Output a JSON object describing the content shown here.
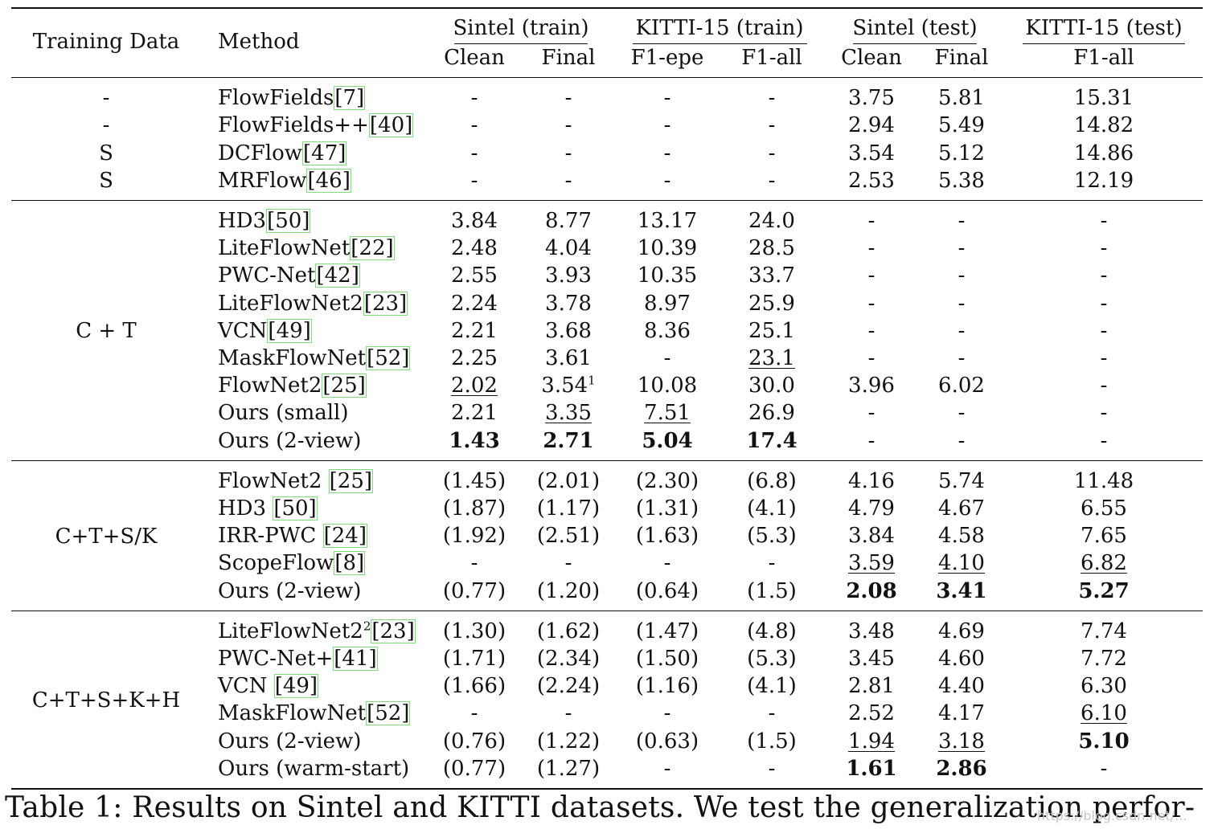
{
  "header": {
    "training_data": "Training Data",
    "method": "Method",
    "groups": [
      "Sintel (train)",
      "KITTI-15 (train)",
      "Sintel (test)",
      "KITTI-15 (test)"
    ],
    "columns": [
      "Clean",
      "Final",
      "F1-epe",
      "F1-all",
      "Clean",
      "Final",
      "F1-all"
    ]
  },
  "sections": [
    {
      "label": "",
      "rows": [
        {
          "td": "-",
          "method": "FlowFields",
          "cite": "[7]",
          "sup": "",
          "cells": [
            [
              "-"
            ],
            [
              "-"
            ],
            [
              "-"
            ],
            [
              "-"
            ],
            [
              "3.75"
            ],
            [
              "5.81"
            ],
            [
              "15.31"
            ]
          ]
        },
        {
          "td": "-",
          "method": "FlowFields++",
          "cite": "[40]",
          "sup": "",
          "cells": [
            [
              "-"
            ],
            [
              "-"
            ],
            [
              "-"
            ],
            [
              "-"
            ],
            [
              "2.94"
            ],
            [
              "5.49"
            ],
            [
              "14.82"
            ]
          ]
        },
        {
          "td": "S",
          "method": "DCFlow",
          "cite": "[47]",
          "sup": "",
          "cells": [
            [
              "-"
            ],
            [
              "-"
            ],
            [
              "-"
            ],
            [
              "-"
            ],
            [
              "3.54"
            ],
            [
              "5.12"
            ],
            [
              "14.86"
            ]
          ]
        },
        {
          "td": "S",
          "method": "MRFlow",
          "cite": "[46]",
          "sup": "",
          "cells": [
            [
              "-"
            ],
            [
              "-"
            ],
            [
              "-"
            ],
            [
              "-"
            ],
            [
              "2.53"
            ],
            [
              "5.38"
            ],
            [
              "12.19"
            ]
          ]
        }
      ]
    },
    {
      "label": "C + T",
      "rows": [
        {
          "td": "",
          "method": "HD3",
          "cite": "[50]",
          "sup": "",
          "cells": [
            [
              "3.84"
            ],
            [
              "8.77"
            ],
            [
              "13.17"
            ],
            [
              "24.0"
            ],
            [
              "-"
            ],
            [
              "-"
            ],
            [
              "-"
            ]
          ]
        },
        {
          "td": "",
          "method": "LiteFlowNet",
          "cite": "[22]",
          "sup": "",
          "cells": [
            [
              "2.48"
            ],
            [
              "4.04"
            ],
            [
              "10.39"
            ],
            [
              "28.5"
            ],
            [
              "-"
            ],
            [
              "-"
            ],
            [
              "-"
            ]
          ]
        },
        {
          "td": "",
          "method": "PWC-Net",
          "cite": "[42]",
          "sup": "",
          "cells": [
            [
              "2.55"
            ],
            [
              "3.93"
            ],
            [
              "10.35"
            ],
            [
              "33.7"
            ],
            [
              "-"
            ],
            [
              "-"
            ],
            [
              "-"
            ]
          ]
        },
        {
          "td": "",
          "method": "LiteFlowNet2",
          "cite": "[23]",
          "sup": "",
          "cells": [
            [
              "2.24"
            ],
            [
              "3.78"
            ],
            [
              "8.97"
            ],
            [
              "25.9"
            ],
            [
              "-"
            ],
            [
              "-"
            ],
            [
              "-"
            ]
          ]
        },
        {
          "td": "",
          "method": "VCN",
          "cite": "[49]",
          "sup": "",
          "cells": [
            [
              "2.21"
            ],
            [
              "3.68"
            ],
            [
              "8.36"
            ],
            [
              "25.1"
            ],
            [
              "-"
            ],
            [
              "-"
            ],
            [
              "-"
            ]
          ]
        },
        {
          "td": "",
          "method": "MaskFlowNet",
          "cite": "[52]",
          "sup": "",
          "cells": [
            [
              "2.25"
            ],
            [
              "3.61"
            ],
            [
              "-"
            ],
            [
              "23.1",
              "u"
            ],
            [
              "-"
            ],
            [
              "-"
            ],
            [
              "-"
            ]
          ]
        },
        {
          "td": "",
          "method": "FlowNet2",
          "cite": "[25]",
          "sup": "",
          "cells": [
            [
              "2.02",
              "u"
            ],
            [
              "3.54",
              "",
              "1"
            ],
            [
              "10.08"
            ],
            [
              "30.0"
            ],
            [
              "3.96"
            ],
            [
              "6.02"
            ],
            [
              "-"
            ]
          ]
        },
        {
          "td": "",
          "method": "Ours (small)",
          "cite": "",
          "sup": "",
          "cells": [
            [
              "2.21"
            ],
            [
              "3.35",
              "u"
            ],
            [
              "7.51",
              "u"
            ],
            [
              "26.9"
            ],
            [
              "-"
            ],
            [
              "-"
            ],
            [
              "-"
            ]
          ]
        },
        {
          "td": "",
          "method": "Ours (2-view)",
          "cite": "",
          "sup": "",
          "cells": [
            [
              "1.43",
              "b"
            ],
            [
              "2.71",
              "b"
            ],
            [
              "5.04",
              "b"
            ],
            [
              "17.4",
              "b"
            ],
            [
              "-"
            ],
            [
              "-"
            ],
            [
              "-"
            ]
          ]
        }
      ]
    },
    {
      "label": "C+T+S/K",
      "rows": [
        {
          "td": "",
          "method": "FlowNet2 ",
          "cite": "[25]",
          "sup": "",
          "cells": [
            [
              "(1.45)"
            ],
            [
              "(2.01)"
            ],
            [
              "(2.30)"
            ],
            [
              "(6.8)"
            ],
            [
              "4.16"
            ],
            [
              "5.74"
            ],
            [
              "11.48"
            ]
          ]
        },
        {
          "td": "",
          "method": "HD3 ",
          "cite": "[50]",
          "sup": "",
          "cells": [
            [
              "(1.87)"
            ],
            [
              "(1.17)"
            ],
            [
              "(1.31)"
            ],
            [
              "(4.1)"
            ],
            [
              "4.79"
            ],
            [
              "4.67"
            ],
            [
              "6.55"
            ]
          ]
        },
        {
          "td": "",
          "method": "IRR-PWC ",
          "cite": "[24]",
          "sup": "",
          "cells": [
            [
              "(1.92)"
            ],
            [
              "(2.51)"
            ],
            [
              "(1.63)"
            ],
            [
              "(5.3)"
            ],
            [
              "3.84"
            ],
            [
              "4.58"
            ],
            [
              "7.65"
            ]
          ]
        },
        {
          "td": "",
          "method": "ScopeFlow",
          "cite": "[8]",
          "sup": "",
          "cells": [
            [
              "-"
            ],
            [
              "-"
            ],
            [
              "-"
            ],
            [
              "-"
            ],
            [
              "3.59",
              "u"
            ],
            [
              "4.10",
              "u"
            ],
            [
              "6.82",
              "u"
            ]
          ]
        },
        {
          "td": "",
          "method": "Ours (2-view)",
          "cite": "",
          "sup": "",
          "cells": [
            [
              "(0.77)"
            ],
            [
              "(1.20)"
            ],
            [
              "(0.64)"
            ],
            [
              "(1.5)"
            ],
            [
              "2.08",
              "b"
            ],
            [
              "3.41",
              "b"
            ],
            [
              "5.27",
              "b"
            ]
          ]
        }
      ]
    },
    {
      "label": "C+T+S+K+H",
      "rows": [
        {
          "td": "",
          "method": "LiteFlowNet2",
          "cite": "[23]",
          "sup": "2",
          "cells": [
            [
              "(1.30)"
            ],
            [
              "(1.62)"
            ],
            [
              "(1.47)"
            ],
            [
              "(4.8)"
            ],
            [
              "3.48"
            ],
            [
              "4.69"
            ],
            [
              "7.74"
            ]
          ]
        },
        {
          "td": "",
          "method": "PWC-Net+",
          "cite": "[41]",
          "sup": "",
          "cells": [
            [
              "(1.71)"
            ],
            [
              "(2.34)"
            ],
            [
              "(1.50)"
            ],
            [
              "(5.3)"
            ],
            [
              "3.45"
            ],
            [
              "4.60"
            ],
            [
              "7.72"
            ]
          ]
        },
        {
          "td": "",
          "method": "VCN ",
          "cite": "[49]",
          "sup": "",
          "cells": [
            [
              "(1.66)"
            ],
            [
              "(2.24)"
            ],
            [
              "(1.16)"
            ],
            [
              "(4.1)"
            ],
            [
              "2.81"
            ],
            [
              "4.40"
            ],
            [
              "6.30"
            ]
          ]
        },
        {
          "td": "",
          "method": "MaskFlowNet",
          "cite": "[52]",
          "sup": "",
          "cells": [
            [
              "-"
            ],
            [
              "-"
            ],
            [
              "-"
            ],
            [
              "-"
            ],
            [
              "2.52"
            ],
            [
              "4.17"
            ],
            [
              "6.10",
              "u"
            ]
          ]
        },
        {
          "td": "",
          "method": "Ours (2-view)",
          "cite": "",
          "sup": "",
          "cells": [
            [
              "(0.76)"
            ],
            [
              "(1.22)"
            ],
            [
              "(0.63)"
            ],
            [
              "(1.5)"
            ],
            [
              "1.94",
              "u"
            ],
            [
              "3.18",
              "u"
            ],
            [
              "5.10",
              "b"
            ]
          ]
        },
        {
          "td": "",
          "method": "Ours (warm-start)",
          "cite": "",
          "sup": "",
          "cells": [
            [
              "(0.77)"
            ],
            [
              "(1.27)"
            ],
            [
              "-"
            ],
            [
              "-"
            ],
            [
              "1.61",
              "b"
            ],
            [
              "2.86",
              "b"
            ],
            [
              "-"
            ]
          ]
        }
      ]
    }
  ],
  "caption": "Table 1: Results on Sintel and KITTI datasets. We test the generalization perfor-",
  "watermark": "https://blog.csdn.net/..."
}
